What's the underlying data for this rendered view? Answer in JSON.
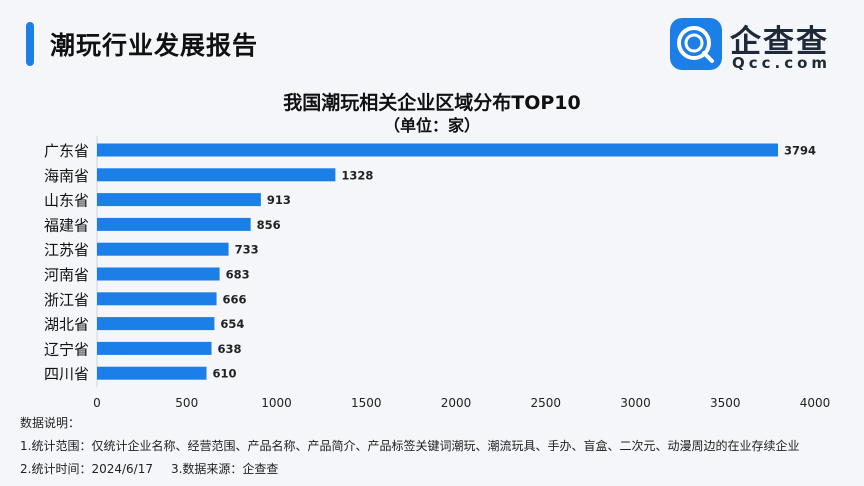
{
  "header": {
    "title": "潮玩行业发展报告",
    "logo_text": "企查查",
    "logo_sub": "Qcc.com",
    "logo_icon": "qcc-logo-icon"
  },
  "colors": {
    "accent": "#1c7fe8",
    "bar": "#1c7fe8",
    "background": "#f4f6fa"
  },
  "chart_data": {
    "type": "bar",
    "orientation": "horizontal",
    "title": "我国潮玩相关企业区域分布TOP10",
    "subtitle": "（单位：家）",
    "categories": [
      "广东省",
      "海南省",
      "山东省",
      "福建省",
      "江苏省",
      "河南省",
      "浙江省",
      "湖北省",
      "辽宁省",
      "四川省"
    ],
    "values": [
      3794,
      1328,
      913,
      856,
      733,
      683,
      666,
      654,
      638,
      610
    ],
    "xlim": [
      0,
      4000
    ],
    "xticks": [
      0,
      500,
      1000,
      1500,
      2000,
      2500,
      3000,
      3500,
      4000
    ],
    "data_labels": true,
    "grid": false,
    "legend": "none"
  },
  "notes": {
    "heading": "数据说明：",
    "line1": "1.统计范围：仅统计企业名称、经营范围、产品名称、产品简介、产品标签关键词潮玩、潮流玩具、手办、盲盒、二次元、动漫周边的在业存续企业",
    "line2_a": "2.统计时间：2024/6/17",
    "line2_b": "3.数据来源：企查查"
  }
}
